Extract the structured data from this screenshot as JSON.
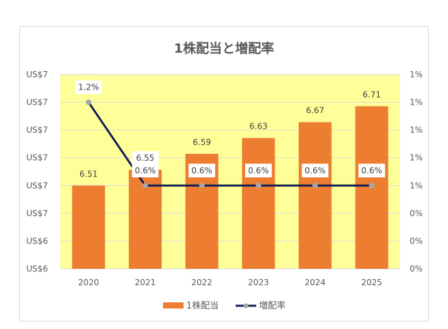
{
  "chart_data": {
    "type": "bar+line",
    "title": "1株配当と増配率",
    "categories": [
      "2020",
      "2021",
      "2022",
      "2023",
      "2024",
      "2025"
    ],
    "series": [
      {
        "name": "1株配当",
        "type": "bar",
        "axis": "left",
        "values": [
          6.51,
          6.55,
          6.59,
          6.63,
          6.67,
          6.71
        ],
        "value_labels": [
          "6.51",
          "6.55",
          "6.59",
          "6.63",
          "6.67",
          "6.71"
        ],
        "color": "#ed7d31"
      },
      {
        "name": "増配率",
        "type": "line",
        "axis": "right",
        "values": [
          1.2,
          0.6,
          0.6,
          0.6,
          0.6,
          0.6
        ],
        "value_labels": [
          "1.2%",
          "0.6%",
          "0.6%",
          "0.6%",
          "0.6%",
          "0.6%"
        ],
        "color": "#0e1e54",
        "marker_color": "#a6a6a6"
      }
    ],
    "left_axis": {
      "ylim": [
        6.3,
        6.79
      ],
      "tick_labels": [
        "US$6",
        "US$6",
        "US$7",
        "US$7",
        "US$7",
        "US$7",
        "US$7",
        "US$7"
      ]
    },
    "right_axis": {
      "ylim": [
        0,
        1.4
      ],
      "tick_labels": [
        "0%",
        "0%",
        "0%",
        "1%",
        "1%",
        "1%",
        "1%",
        "1%"
      ]
    },
    "plot_background": "#ffff99",
    "grid": true,
    "legend_position": "bottom"
  }
}
